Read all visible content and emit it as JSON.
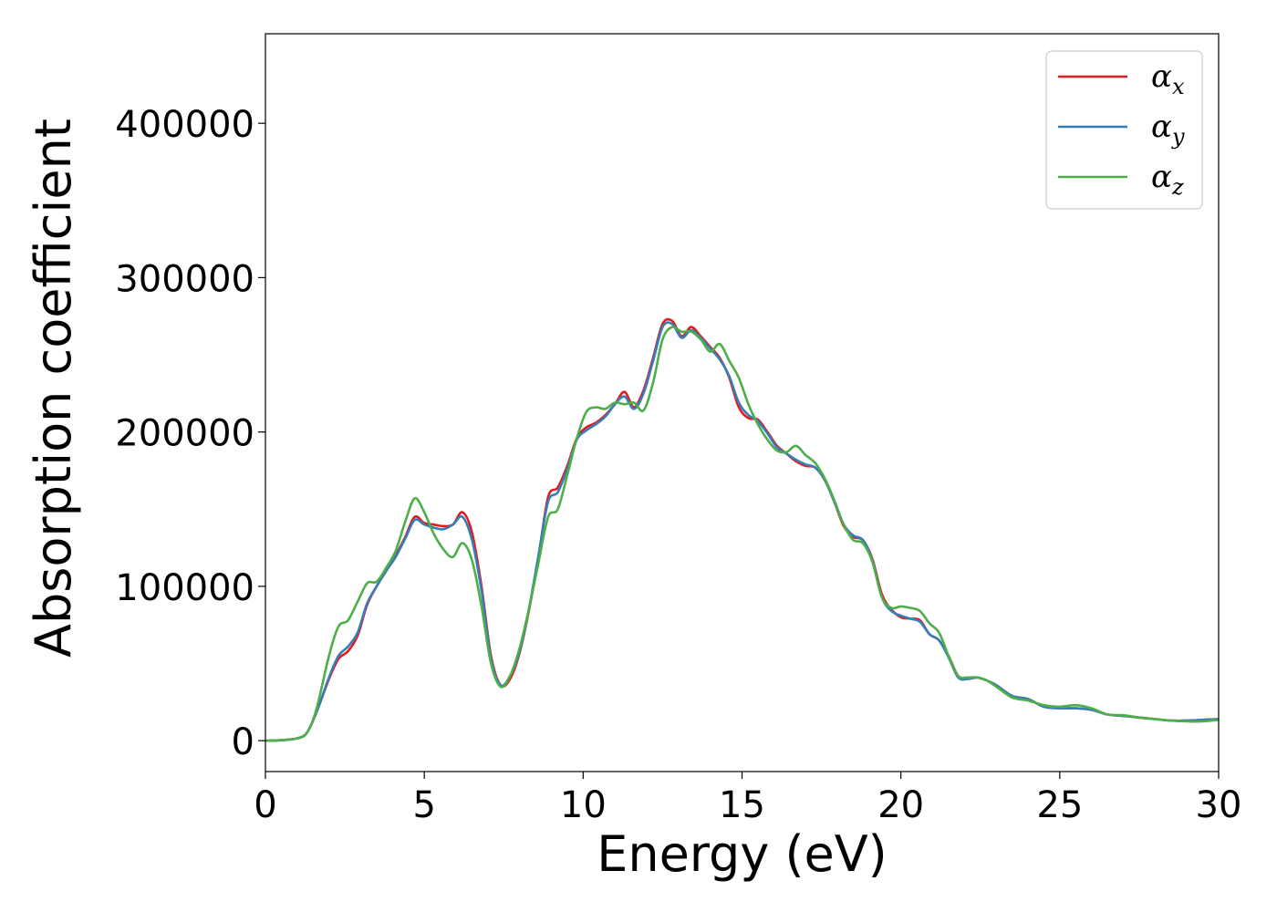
{
  "chart_data": {
    "type": "line",
    "title": "",
    "xlabel": "Energy (eV)",
    "ylabel": "Absorption coefficient",
    "xlim": [
      0,
      30
    ],
    "ylim": [
      -20000,
      458000
    ],
    "xticks": [
      0,
      5,
      10,
      15,
      20,
      25,
      30
    ],
    "xtick_labels": [
      "0",
      "5",
      "10",
      "15",
      "20",
      "25",
      "30"
    ],
    "yticks": [
      0,
      100000,
      200000,
      300000,
      400000
    ],
    "ytick_labels": [
      "0",
      "100000",
      "200000",
      "300000",
      "400000"
    ],
    "grid": false,
    "legend_position": "top-right",
    "x": [
      0,
      0.5,
      1.0,
      1.3,
      1.6,
      2.0,
      2.3,
      2.6,
      2.9,
      3.2,
      3.5,
      3.8,
      4.1,
      4.4,
      4.7,
      5.0,
      5.3,
      5.6,
      5.9,
      6.2,
      6.5,
      6.8,
      7.1,
      7.4,
      7.7,
      8.0,
      8.3,
      8.6,
      8.9,
      9.2,
      9.5,
      9.8,
      10.1,
      10.4,
      10.7,
      11.0,
      11.3,
      11.6,
      11.9,
      12.2,
      12.5,
      12.8,
      13.1,
      13.4,
      13.7,
      14.0,
      14.3,
      14.6,
      14.9,
      15.2,
      15.5,
      15.8,
      16.1,
      16.4,
      16.7,
      17.0,
      17.3,
      17.6,
      17.9,
      18.2,
      18.5,
      18.8,
      19.1,
      19.4,
      19.7,
      20.0,
      20.3,
      20.6,
      20.9,
      21.2,
      21.5,
      21.8,
      22.1,
      22.4,
      22.7,
      23.0,
      23.5,
      24.0,
      24.5,
      25.0,
      25.5,
      26.0,
      26.5,
      27.0,
      27.5,
      28.0,
      28.5,
      29.0,
      29.5,
      30.0
    ],
    "series": [
      {
        "name": "α",
        "subscript": "x",
        "color": "#e41a1c",
        "values": [
          0,
          300,
          1500,
          5000,
          18000,
          40000,
          53000,
          58000,
          68000,
          88000,
          100000,
          110000,
          120000,
          132000,
          145000,
          141000,
          140000,
          139000,
          140000,
          148000,
          135000,
          100000,
          55000,
          36000,
          40000,
          57000,
          85000,
          120000,
          158000,
          164000,
          178000,
          196000,
          203000,
          206000,
          211000,
          218000,
          226000,
          216000,
          227000,
          248000,
          270000,
          272000,
          262000,
          268000,
          262000,
          255000,
          248000,
          235000,
          216000,
          209000,
          208000,
          200000,
          191000,
          186000,
          181000,
          178000,
          177000,
          169000,
          155000,
          139000,
          132000,
          130000,
          118000,
          95000,
          85000,
          80000,
          79000,
          78000,
          69000,
          65000,
          55000,
          42000,
          40000,
          41000,
          39000,
          36000,
          29000,
          27000,
          22000,
          21000,
          21000,
          20000,
          17000,
          16000,
          15000,
          14000,
          13000,
          13000,
          13500,
          14000
        ]
      },
      {
        "name": "α",
        "subscript": "y",
        "color": "#377eb8",
        "values": [
          0,
          300,
          1500,
          5000,
          18000,
          41000,
          55000,
          61000,
          70000,
          89000,
          100000,
          110000,
          119000,
          131000,
          143000,
          140000,
          138000,
          137000,
          140000,
          145000,
          130000,
          97000,
          53000,
          36000,
          42000,
          58000,
          86000,
          121000,
          155000,
          161000,
          176000,
          195000,
          201000,
          205000,
          210000,
          218000,
          223000,
          215000,
          225000,
          246000,
          268000,
          270000,
          261000,
          266000,
          261000,
          254000,
          247000,
          236000,
          219000,
          211000,
          207000,
          199000,
          190000,
          186000,
          182000,
          179000,
          177000,
          169000,
          155000,
          140000,
          133000,
          130000,
          117000,
          93000,
          84000,
          81000,
          79000,
          77000,
          69000,
          65000,
          54000,
          41000,
          40000,
          41000,
          39000,
          36000,
          29000,
          27000,
          22000,
          21000,
          21000,
          20000,
          17000,
          16000,
          15000,
          14000,
          13000,
          13000,
          13500,
          14000
        ]
      },
      {
        "name": "α",
        "subscript": "z",
        "color": "#4daf4a",
        "values": [
          0,
          300,
          1500,
          5000,
          20000,
          55000,
          74000,
          78000,
          90000,
          102000,
          103000,
          112000,
          123000,
          142000,
          157000,
          148000,
          134000,
          124000,
          119000,
          128000,
          117000,
          87000,
          50000,
          35000,
          42000,
          60000,
          86000,
          116000,
          145000,
          150000,
          172000,
          196000,
          213000,
          216000,
          215000,
          219000,
          218000,
          219000,
          214000,
          232000,
          260000,
          268000,
          265000,
          265000,
          260000,
          252000,
          257000,
          246000,
          235000,
          218000,
          205000,
          195000,
          188000,
          187000,
          191000,
          185000,
          180000,
          170000,
          156000,
          140000,
          130000,
          128000,
          116000,
          93000,
          86000,
          87000,
          86000,
          84000,
          76000,
          70000,
          55000,
          42000,
          41000,
          41000,
          39000,
          35000,
          28000,
          26000,
          23000,
          22000,
          23000,
          21000,
          17000,
          16500,
          15000,
          14000,
          13000,
          12500,
          12500,
          13500
        ]
      }
    ]
  }
}
